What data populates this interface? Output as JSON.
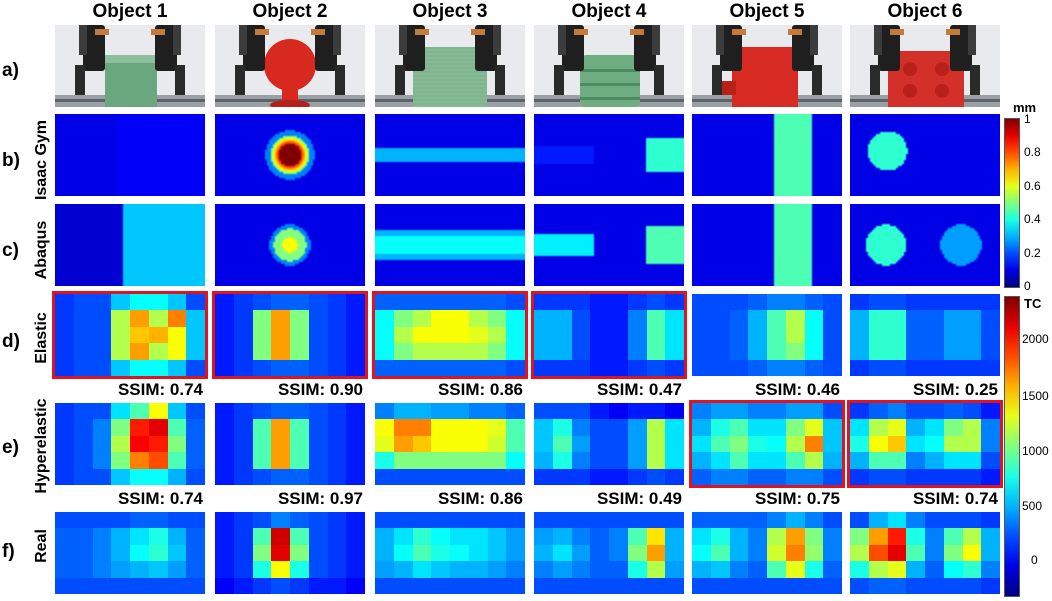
{
  "columns": [
    "Object 1",
    "Object 2",
    "Object 3",
    "Object 4",
    "Object 5",
    "Object 6"
  ],
  "rows": [
    {
      "letter": "a)",
      "label": ""
    },
    {
      "letter": "b)",
      "label": "Isaac Gym"
    },
    {
      "letter": "c)",
      "label": "Abaqus"
    },
    {
      "letter": "d)",
      "label": "Elastic"
    },
    {
      "letter": "e)",
      "label": "Hyperelastic"
    },
    {
      "letter": "f)",
      "label": "Real"
    }
  ],
  "ssim_e": [
    "SSIM: 0.74",
    "SSIM: 0.90",
    "SSIM: 0.86",
    "SSIM: 0.47",
    "SSIM: 0.46",
    "SSIM: 0.25"
  ],
  "ssim_f": [
    "SSIM: 0.74",
    "SSIM: 0.97",
    "SSIM: 0.86",
    "SSIM: 0.49",
    "SSIM: 0.75",
    "SSIM: 0.74"
  ],
  "highlights": {
    "d": [
      0,
      1,
      2,
      3
    ],
    "e": [
      4,
      5
    ]
  },
  "colorbar_top": {
    "unit": "mm",
    "min": 0,
    "max": 1,
    "ticks": [
      "1",
      "0.8",
      "0.6",
      "0.4",
      "0.2",
      "0"
    ]
  },
  "colorbar_bottom": {
    "unit": "TC",
    "min": -300,
    "max": 2300,
    "ticks": [
      "2000",
      "1500",
      "1000",
      "500",
      "0"
    ]
  },
  "object_colors": [
    "#6aa67e",
    "#d8291f",
    "#7fb58d",
    "#6fae80",
    "#d62a22",
    "#d4302a"
  ]
}
